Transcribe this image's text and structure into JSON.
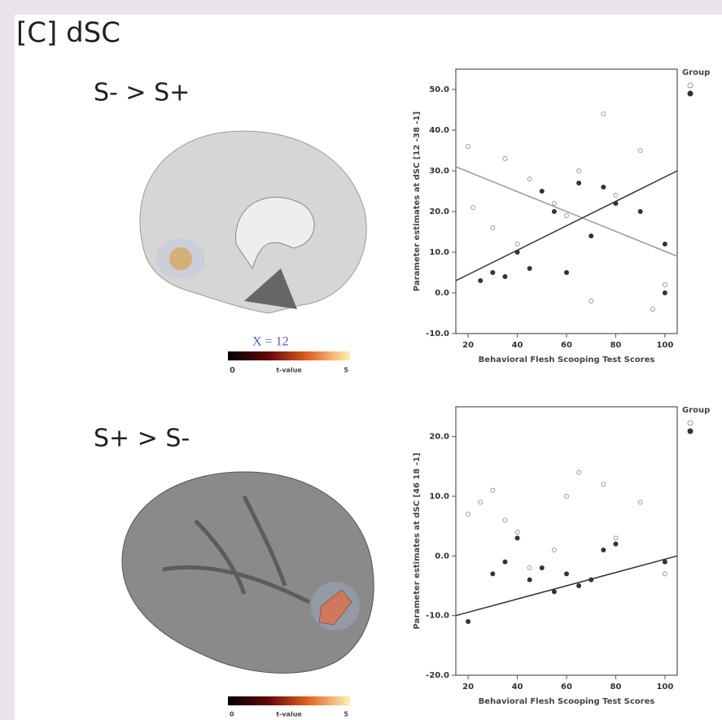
{
  "figure": {
    "title": "[C] dSC",
    "panels": [
      {
        "contrast": "S- > S+",
        "slice": "X = 12",
        "colorbar": {
          "min": "0",
          "label": "t-value",
          "max": "5"
        }
      },
      {
        "contrast": "S+ > S-",
        "colorbar": {
          "min": "0",
          "label": "t-value",
          "max": "5"
        }
      }
    ]
  },
  "chart_data": [
    {
      "type": "scatter",
      "ylabel": "Parameter estimates at dSC [12 -38 -1]",
      "xlabel": "Behavioral Flesh Scooping Test Scores",
      "legend_title": "Group",
      "xlim": [
        15,
        105
      ],
      "xticks": [
        20,
        40,
        60,
        80,
        100
      ],
      "ylim": [
        -10,
        55
      ],
      "yticks": [
        {
          "value": -10,
          "label": "-10.0"
        },
        {
          "value": 0,
          "label": "0.0"
        },
        {
          "value": 10,
          "label": "10.0"
        },
        {
          "value": 20,
          "label": "20.0"
        },
        {
          "value": 30,
          "label": "30.0"
        },
        {
          "value": 40,
          "label": "40.0"
        },
        {
          "value": 50,
          "label": "50.0"
        }
      ],
      "series": [
        {
          "color": "#9a9a9a",
          "marker": "open",
          "x": [
            20,
            22,
            30,
            35,
            40,
            45,
            55,
            60,
            65,
            70,
            75,
            80,
            90,
            95,
            100
          ],
          "y": [
            36,
            21,
            16,
            33,
            12,
            28,
            22,
            19,
            30,
            -2,
            44,
            24,
            35,
            -4,
            2
          ],
          "fit_x": [
            15,
            105
          ],
          "fit_y": [
            31,
            9
          ]
        },
        {
          "color": "#333333",
          "marker": "filled",
          "x": [
            25,
            30,
            35,
            40,
            45,
            50,
            55,
            60,
            65,
            70,
            75,
            80,
            90,
            100,
            100
          ],
          "y": [
            3,
            5,
            4,
            10,
            6,
            25,
            20,
            5,
            27,
            14,
            26,
            22,
            20,
            12,
            0
          ],
          "fit_x": [
            15,
            105
          ],
          "fit_y": [
            3,
            30
          ]
        }
      ]
    },
    {
      "type": "scatter",
      "ylabel": "Parameter estimates at dSC [46 18 -1]",
      "xlabel": "Behavioral Flesh Scooping Test Scores",
      "legend_title": "Group",
      "xlim": [
        15,
        105
      ],
      "xticks": [
        20,
        40,
        60,
        80,
        100
      ],
      "ylim": [
        -20,
        25
      ],
      "yticks": [
        {
          "value": -20,
          "label": "-20.0"
        },
        {
          "value": -10,
          "label": "-10.0"
        },
        {
          "value": 0,
          "label": "0.0"
        },
        {
          "value": 10,
          "label": "10.0"
        },
        {
          "value": 20,
          "label": "20.0"
        }
      ],
      "series": [
        {
          "color": "#9a9a9a",
          "marker": "open",
          "x": [
            20,
            25,
            30,
            35,
            40,
            45,
            55,
            60,
            65,
            75,
            80,
            90,
            100
          ],
          "y": [
            7,
            9,
            11,
            6,
            4,
            -2,
            1,
            10,
            14,
            12,
            3,
            9,
            -3
          ]
        },
        {
          "color": "#333333",
          "marker": "filled",
          "x": [
            20,
            30,
            35,
            40,
            45,
            50,
            55,
            60,
            65,
            70,
            75,
            80,
            100
          ],
          "y": [
            -11,
            -3,
            -1,
            3,
            -4,
            -2,
            -6,
            -3,
            -5,
            -4,
            1,
            2,
            -1
          ],
          "fit_x": [
            15,
            105
          ],
          "fit_y": [
            -10,
            0
          ]
        }
      ]
    }
  ]
}
